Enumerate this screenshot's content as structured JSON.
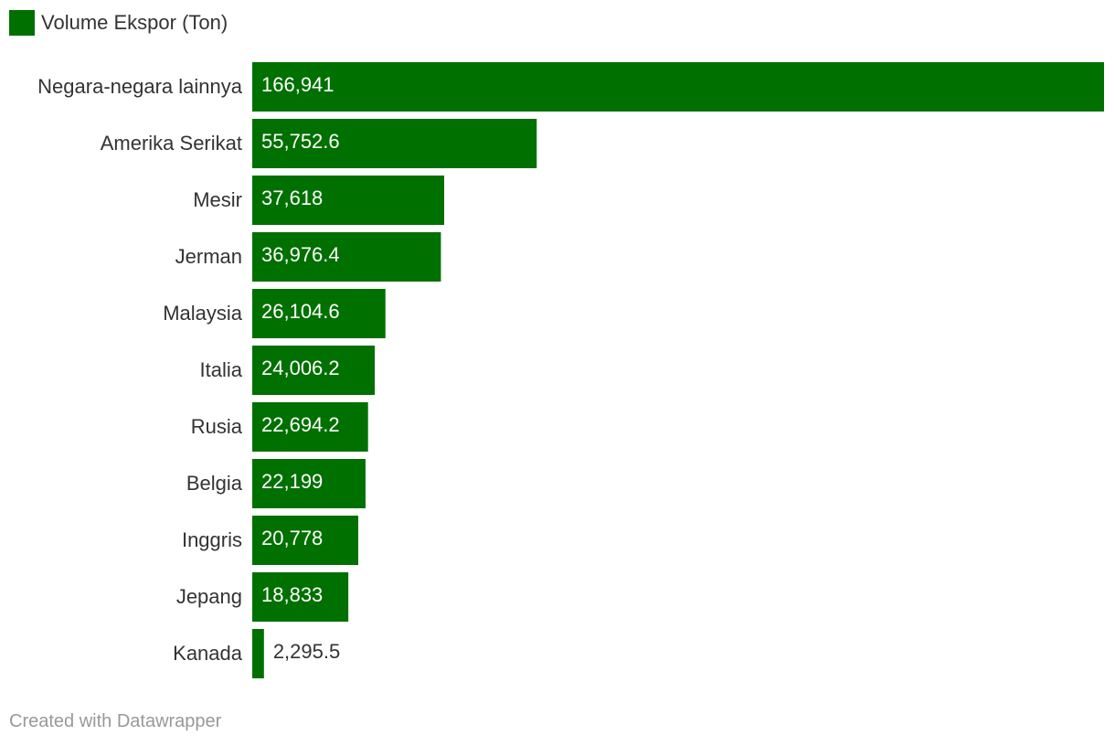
{
  "legend": {
    "label": "Volume Ekspor (Ton)",
    "color": "#007000"
  },
  "footer": {
    "credit": "Created with Datawrapper"
  },
  "colors": {
    "bar": "#007000",
    "label_inside": "#ffffff",
    "label_outside": "#333333",
    "category_text": "#333333"
  },
  "chart_data": {
    "type": "bar",
    "orientation": "horizontal",
    "categories": [
      "Negara-negara lainnya",
      "Amerika Serikat",
      "Mesir",
      "Jerman",
      "Malaysia",
      "Italia",
      "Rusia",
      "Belgia",
      "Inggris",
      "Jepang",
      "Kanada"
    ],
    "series": [
      {
        "name": "Volume Ekspor (Ton)",
        "values": [
          166941,
          55752.6,
          37618,
          36976.4,
          26104.6,
          24006.2,
          22694.2,
          22199,
          20778,
          18833,
          2295.5
        ],
        "labels": [
          "166,941",
          "55,752.6",
          "37,618",
          "36,976.4",
          "26,104.6",
          "24,006.2",
          "22,694.2",
          "22,199",
          "20,778",
          "18,833",
          "2,295.5"
        ]
      }
    ],
    "title": "",
    "xlabel": "",
    "ylabel": "",
    "xlim": [
      0,
      166941
    ],
    "grid": false,
    "legend_position": "top-left"
  }
}
